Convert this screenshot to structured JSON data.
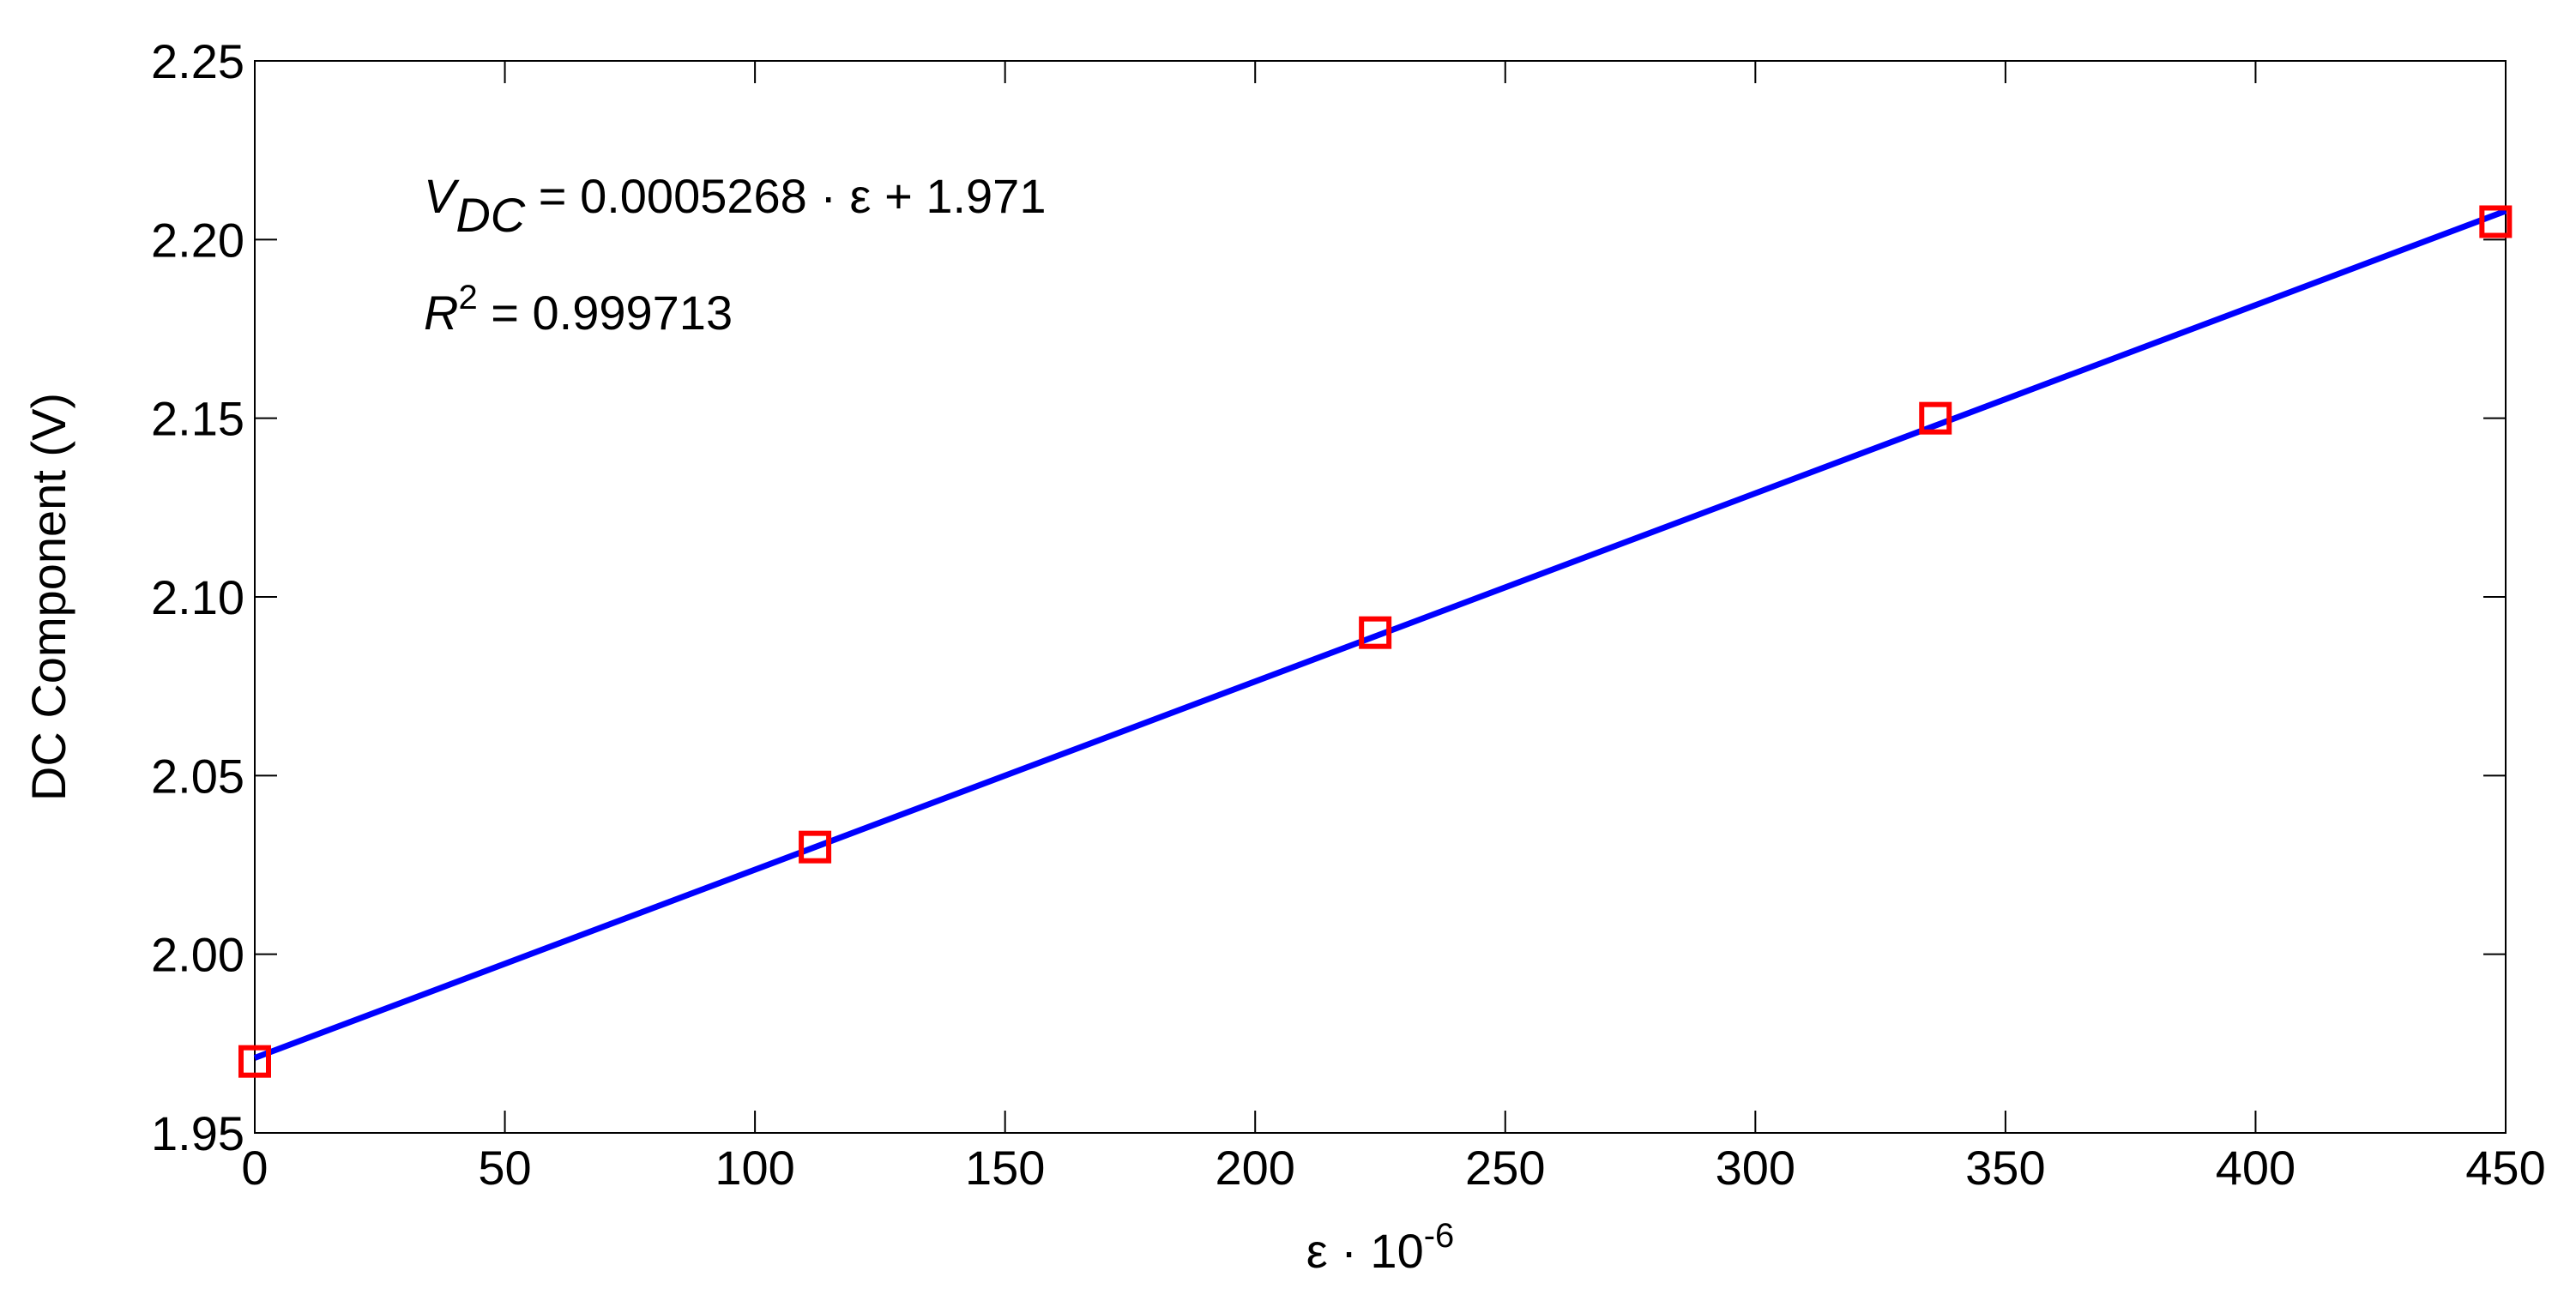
{
  "chart_data": {
    "type": "scatter",
    "x_label": {
      "text": "ε · 10",
      "superscript": "-6"
    },
    "y_label": "DC Component (V)",
    "annotations": [
      {
        "main": "V",
        "sub": "DC",
        "rest": " = 0.0005268 · ε + 1.971"
      },
      {
        "main": "R",
        "sup": "2",
        "rest": " = 0.999713"
      }
    ],
    "series": [
      {
        "kind": "markers",
        "color": "#ff0000",
        "x": [
          0,
          112,
          224,
          336,
          448
        ],
        "values": [
          1.97,
          2.03,
          2.09,
          2.15,
          2.205
        ]
      },
      {
        "kind": "line",
        "color": "#0000ff",
        "x": [
          0,
          450
        ],
        "values": [
          1.971,
          2.208
        ]
      }
    ],
    "xlim": [
      0,
      450
    ],
    "xticks": [
      0,
      50,
      100,
      150,
      200,
      250,
      300,
      350,
      400,
      450
    ],
    "ylim": [
      1.95,
      2.25
    ],
    "yticks": [
      1.95,
      {
        "value": 2.0,
        "label": "2.00"
      },
      2.05,
      {
        "value": 2.1,
        "label": "2.10"
      },
      2.15,
      {
        "value": 2.2,
        "label": "2.20"
      },
      2.25
    ],
    "grid": false
  }
}
